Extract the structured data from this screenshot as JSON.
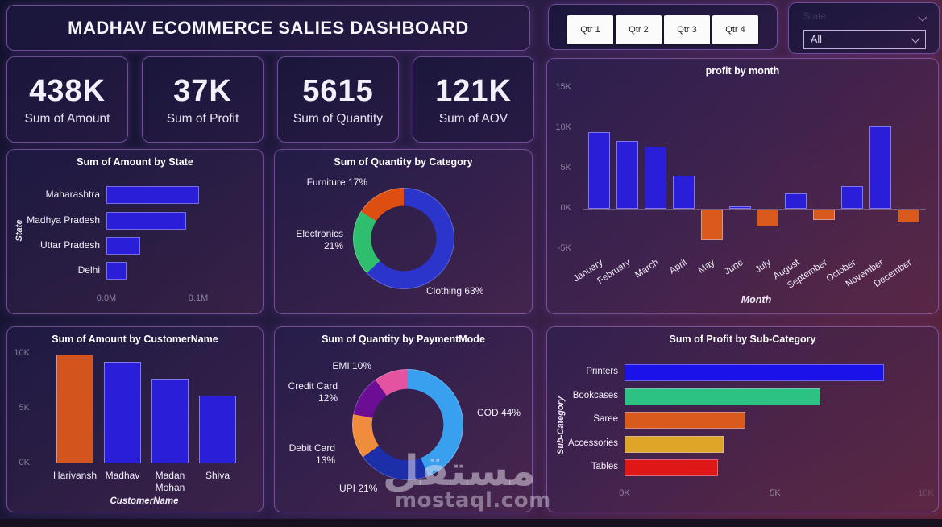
{
  "header": {
    "title": "MADHAV ECOMMERCE SALIES DASHBOARD"
  },
  "filters": {
    "quarter_buttons": [
      {
        "label": "Qtr 1"
      },
      {
        "label": "Qtr 2"
      },
      {
        "label": "Qtr 3"
      },
      {
        "label": "Qtr 4"
      }
    ],
    "slicer": {
      "header": "State",
      "value": "All"
    }
  },
  "kpis": [
    {
      "value": "438K",
      "label": "Sum of Amount"
    },
    {
      "value": "37K",
      "label": "Sum of Profit"
    },
    {
      "value": "5615",
      "label": "Sum of Quantity"
    },
    {
      "value": "121K",
      "label": "Sum of AOV"
    }
  ],
  "chart_data": [
    {
      "type": "bar",
      "orientation": "horizontal",
      "title": "Sum of Amount by State",
      "ylabel": "State",
      "categories": [
        "Maharashtra",
        "Madhya Pradesh",
        "Uttar Pradesh",
        "Delhi"
      ],
      "values_m": [
        0.101,
        0.087,
        0.037,
        0.022
      ],
      "xticks": [
        {
          "label": "0.0M",
          "value": 0
        },
        {
          "label": "0.1M",
          "value": 0.1
        }
      ],
      "xlim": [
        0,
        0.165
      ],
      "bar_color": "#2a1ed8"
    },
    {
      "type": "donut",
      "title": "Sum of Quantity by Category",
      "slices": [
        {
          "label": "Clothing",
          "pct": 63,
          "color": "#2b35cc",
          "callout": "Clothing 63%"
        },
        {
          "label": "Electronics",
          "pct": 21,
          "color": "#2ebe6e",
          "callout": "Electronics 21%"
        },
        {
          "label": "Furniture",
          "pct": 17,
          "color": "#dd4f10",
          "callout": "Furniture 17%"
        }
      ]
    },
    {
      "type": "column",
      "title": "profit by month",
      "xlabel": "Month",
      "categories": [
        "January",
        "February",
        "March",
        "April",
        "May",
        "June",
        "July",
        "August",
        "September",
        "October",
        "November",
        "December"
      ],
      "values_k": [
        9.5,
        8.4,
        7.7,
        4.1,
        -3.8,
        0.3,
        -2.1,
        1.9,
        -1.3,
        2.8,
        10.3,
        -1.6
      ],
      "yticks": [
        {
          "label": "15K",
          "value": 15
        },
        {
          "label": "10K",
          "value": 10
        },
        {
          "label": "5K",
          "value": 5
        },
        {
          "label": "0K",
          "value": 0
        },
        {
          "label": "-5K",
          "value": -5
        }
      ],
      "ylim": [
        -5,
        15
      ],
      "positive_color": "#2a1ed8",
      "negative_color": "#d95a1c"
    },
    {
      "type": "column",
      "title": "Sum of Amount by CustomerName",
      "xlabel": "CustomerName",
      "categories": [
        "Harivansh",
        "Madhav",
        "Madan Mohan",
        "Shiva"
      ],
      "values_k": [
        9.9,
        9.3,
        7.7,
        6.2
      ],
      "bar_colors": [
        "#d4541e",
        "#2a1ed8",
        "#2a1ed8",
        "#2a1ed8"
      ],
      "yticks": [
        {
          "label": "10K",
          "value": 10
        },
        {
          "label": "5K",
          "value": 5
        },
        {
          "label": "0K",
          "value": 0
        }
      ],
      "ylim": [
        0,
        10.5
      ]
    },
    {
      "type": "donut",
      "title": "Sum of Quantity by PaymentMode",
      "slices": [
        {
          "label": "COD",
          "pct": 44,
          "color": "#39a0ef",
          "callout": "COD 44%"
        },
        {
          "label": "UPI",
          "pct": 21,
          "color": "#1d2fa8",
          "callout": "UPI 21%"
        },
        {
          "label": "Debit Card",
          "pct": 13,
          "color": "#ef8d3c",
          "callout": "Debit Card 13%"
        },
        {
          "label": "Credit Card",
          "pct": 12,
          "color": "#6c0d96",
          "callout": "Credit Card 12%"
        },
        {
          "label": "EMI",
          "pct": 10,
          "color": "#e3539f",
          "callout": "EMI 10%"
        }
      ]
    },
    {
      "type": "bar",
      "orientation": "horizontal",
      "title": "Sum of Profit by Sub-Category",
      "ylabel": "Sub-Category",
      "categories": [
        "Printers",
        "Bookcases",
        "Saree",
        "Accessories",
        "Tables"
      ],
      "values_k": [
        8.6,
        6.5,
        4.0,
        3.3,
        3.1
      ],
      "bar_colors": [
        "#1a12e8",
        "#2bc284",
        "#d95a1c",
        "#dfa528",
        "#e01717"
      ],
      "xticks": [
        {
          "label": "0K",
          "value": 0
        },
        {
          "label": "5K",
          "value": 5
        },
        {
          "label": "10K",
          "value": 10
        }
      ],
      "xlim": [
        0,
        10.3
      ]
    }
  ],
  "watermark": {
    "arabic": "مستقل",
    "latin": "mostaql.com"
  },
  "icons": {
    "slicer_header_icon": "chevron-down",
    "slicer_value_icon": "chevron-down"
  },
  "colors": {
    "positive_bar": "#2a1ed8",
    "negative_bar": "#d95a1c",
    "panel_border": "#6f4f96",
    "background_top": "#12122c",
    "background_bottom": "#5d2438"
  }
}
